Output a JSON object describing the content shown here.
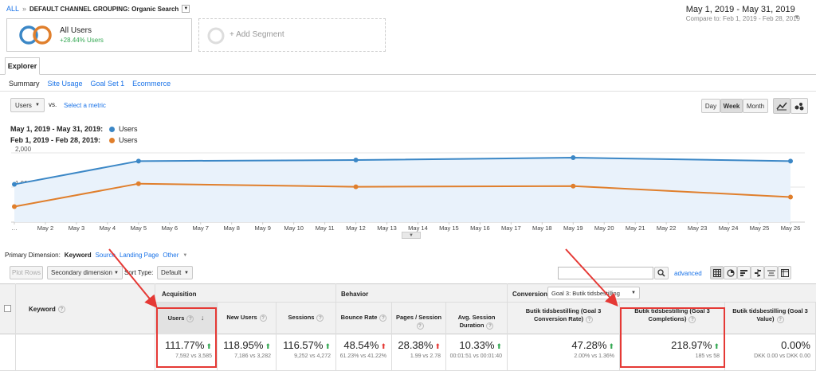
{
  "breadcrumb": {
    "all": "ALL",
    "sep": "»",
    "grouping": "DEFAULT CHANNEL GROUPING: Organic Search"
  },
  "date_range": {
    "primary": "May 1, 2019 - May 31, 2019",
    "compare_label": "Compare to:",
    "compare": "Feb 1, 2019 - Feb 28, 2019"
  },
  "segment": {
    "name": "All Users",
    "change": "+28.44% Users",
    "add": "+ Add Segment"
  },
  "tabs": {
    "explorer": "Explorer"
  },
  "subtabs": [
    "Summary",
    "Site Usage",
    "Goal Set 1",
    "Ecommerce"
  ],
  "metric_select": {
    "value": "Users",
    "vs": "vs.",
    "select": "Select a metric"
  },
  "granularity": [
    "Day",
    "Week",
    "Month"
  ],
  "legend": [
    {
      "range": "May 1, 2019 - May 31, 2019:",
      "label": "Users",
      "color": "#3b87c6"
    },
    {
      "range": "Feb 1, 2019 - Feb 28, 2019:",
      "label": "Users",
      "color": "#e07f2c"
    }
  ],
  "chart_data": {
    "type": "line",
    "x": [
      "…",
      "May 2",
      "May 3",
      "May 4",
      "May 5",
      "May 6",
      "May 7",
      "May 8",
      "May 9",
      "May 10",
      "May 11",
      "May 12",
      "May 13",
      "May 14",
      "May 15",
      "May 16",
      "May 17",
      "May 18",
      "May 19",
      "May 20",
      "May 21",
      "May 22",
      "May 23",
      "May 24",
      "May 25",
      "May 26"
    ],
    "yticks": [
      "2,000",
      "1,000"
    ],
    "ylim": [
      0,
      2000
    ],
    "series": [
      {
        "points": [
          [
            0,
            1080
          ],
          [
            4,
            1760
          ],
          [
            11,
            1790
          ],
          [
            18,
            1860
          ],
          [
            25,
            1760
          ]
        ],
        "color": "#3b87c6",
        "fill": true
      },
      {
        "points": [
          [
            0,
            430
          ],
          [
            4,
            1100
          ],
          [
            11,
            1010
          ],
          [
            18,
            1030
          ],
          [
            25,
            710
          ]
        ],
        "color": "#e07f2c",
        "fill": false
      }
    ]
  },
  "primary_dim": {
    "label": "Primary Dimension:",
    "items": [
      "Keyword",
      "Source",
      "Landing Page",
      "Other"
    ]
  },
  "toolbar": {
    "plot_rows": "Plot Rows",
    "secondary": "Secondary dimension",
    "sort_label": "Sort Type:",
    "sort_value": "Default",
    "advanced": "advanced"
  },
  "table": {
    "keyword_header": "Keyword",
    "groups": {
      "acquisition": "Acquisition",
      "behavior": "Behavior",
      "conversions": "Conversions",
      "goal_select": "Goal 3: Butik tidsbestilling"
    },
    "columns": [
      {
        "label": "Users",
        "value": "111.77%",
        "sub": "7,592 vs 3,585",
        "dir": "up"
      },
      {
        "label": "New Users",
        "value": "118.95%",
        "sub": "7,186 vs 3,282",
        "dir": "up"
      },
      {
        "label": "Sessions",
        "value": "116.57%",
        "sub": "9,252 vs 4,272",
        "dir": "up"
      },
      {
        "label": "Bounce Rate",
        "value": "48.54%",
        "sub": "61.23% vs 41.22%",
        "dir": "down"
      },
      {
        "label": "Pages / Session",
        "value": "28.38%",
        "sub": "1.99 vs 2.78",
        "dir": "down"
      },
      {
        "label": "Avg. Session Duration",
        "value": "10.33%",
        "sub": "00:01:51 vs 00:01:40",
        "dir": "up"
      },
      {
        "label": "Butik tidsbestilling (Goal 3 Conversion Rate)",
        "value": "47.28%",
        "sub": "2.00% vs 1.36%",
        "dir": "up"
      },
      {
        "label": "Butik tidsbestilling (Goal 3 Completions)",
        "value": "218.97%",
        "sub": "185 vs 58",
        "dir": "up"
      },
      {
        "label": "Butik tidsbestilling (Goal 3 Value)",
        "value": "0.00%",
        "sub": "DKK 0.00 vs DKK 0.00",
        "dir": "none"
      }
    ]
  }
}
